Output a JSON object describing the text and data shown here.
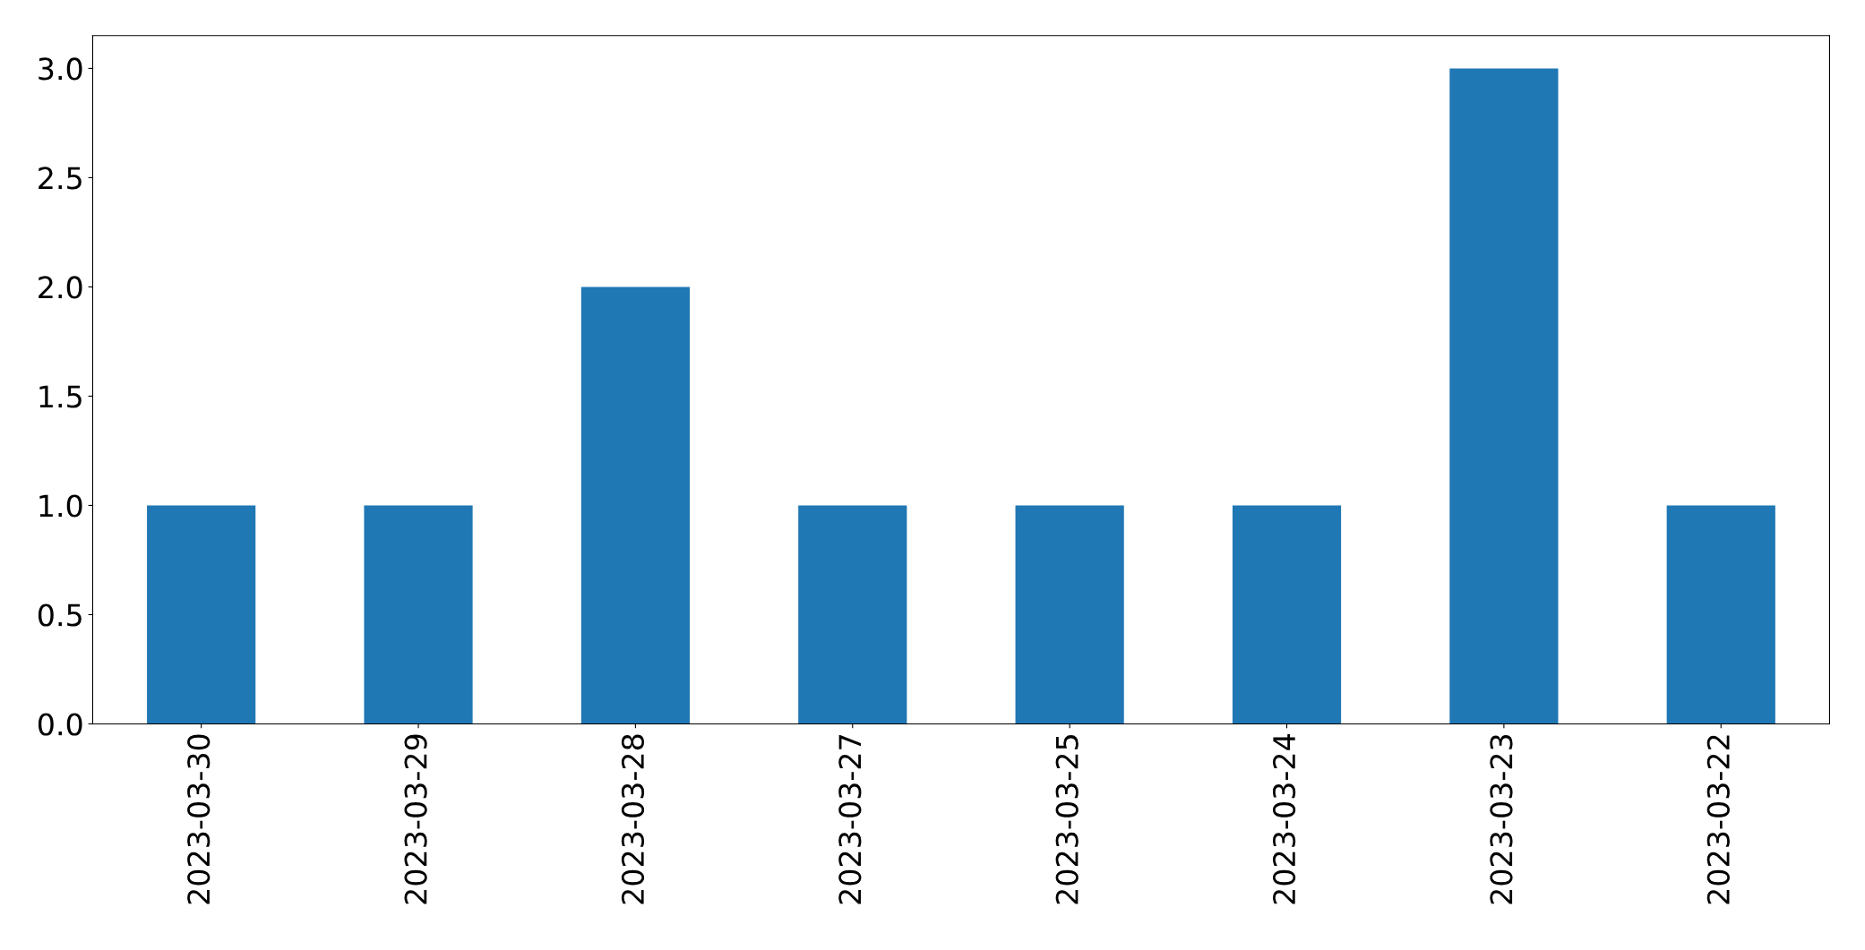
{
  "chart_data": {
    "type": "bar",
    "categories": [
      "2023-03-30",
      "2023-03-29",
      "2023-03-28",
      "2023-03-27",
      "2023-03-25",
      "2023-03-24",
      "2023-03-23",
      "2023-03-22"
    ],
    "values": [
      1,
      1,
      2,
      1,
      1,
      1,
      3,
      1
    ],
    "color": "#1f77b4",
    "ylim": [
      0,
      3.15
    ],
    "yticks": [
      {
        "value": 0,
        "label": "0.0"
      },
      {
        "value": 0.5,
        "label": "0.5"
      },
      {
        "value": 1,
        "label": "1.0"
      },
      {
        "value": 1.5,
        "label": "1.5"
      },
      {
        "value": 2,
        "label": "2.0"
      },
      {
        "value": 2.5,
        "label": "2.5"
      },
      {
        "value": 3,
        "label": "3.0"
      }
    ],
    "grid": false,
    "legend": false
  }
}
